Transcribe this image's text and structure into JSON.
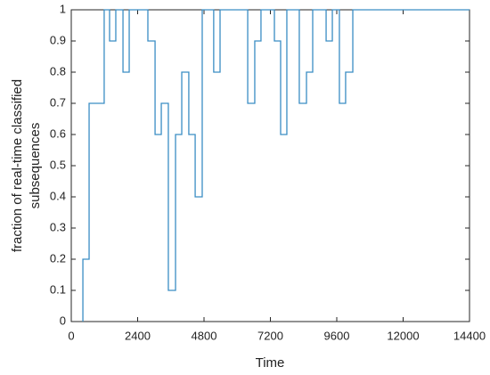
{
  "chart_data": {
    "type": "line",
    "step": "post",
    "xlabel": "Time",
    "ylabel": [
      "fraction of real-time classified",
      "subsequences"
    ],
    "xlim": [
      0,
      14400
    ],
    "xticks": [
      0,
      2400,
      4800,
      7200,
      9600,
      12000,
      14400
    ],
    "ylim": [
      0,
      1
    ],
    "yticks": [
      0,
      0.1,
      0.2,
      0.3,
      0.4,
      0.5,
      0.6,
      0.7,
      0.8,
      0.9,
      1
    ],
    "series": [
      {
        "color": "#3a8dc4",
        "x": [
          420,
          420,
          645,
          1190,
          1385,
          1610,
          1870,
          2095,
          2770,
          3030,
          3255,
          3510,
          3770,
          3995,
          4250,
          4480,
          4735,
          5150,
          5380,
          6380,
          6635,
          6860,
          7345,
          7570,
          7795,
          8245,
          8505,
          8730,
          9215,
          9440,
          9695,
          9920,
          10180,
          14400
        ],
        "values": [
          0,
          0.2,
          0.7,
          1,
          0.9,
          1,
          0.8,
          1,
          0.9,
          0.6,
          0.7,
          0.1,
          0.6,
          0.8,
          0.6,
          0.4,
          1,
          0.8,
          1,
          0.7,
          0.9,
          1,
          0.9,
          0.6,
          1,
          0.7,
          0.8,
          1,
          0.9,
          1,
          0.7,
          0.8,
          1,
          1
        ]
      }
    ]
  }
}
